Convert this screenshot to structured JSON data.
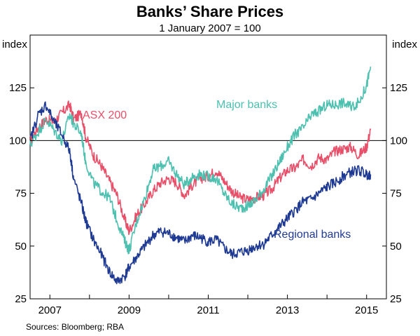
{
  "chart_data": {
    "type": "line",
    "title": "Banks’ Share Prices",
    "subtitle": "1 January 2007 = 100",
    "ylabel_left": "index",
    "ylabel_right": "index",
    "ylim": [
      25,
      150
    ],
    "yticks": [
      25,
      50,
      75,
      100,
      125
    ],
    "xlim": [
      2006.5,
      2015.5
    ],
    "xticks": [
      2007,
      2009,
      2011,
      2013,
      2015
    ],
    "reference_line": 100,
    "grid": false,
    "series": [
      {
        "name": "ASX 200",
        "color": "#e8506a",
        "x": [
          2006.5,
          2006.7,
          2006.9,
          2007.1,
          2007.3,
          2007.5,
          2007.6,
          2007.8,
          2007.9,
          2008.1,
          2008.3,
          2008.5,
          2008.7,
          2008.9,
          2009.0,
          2009.2,
          2009.4,
          2009.6,
          2009.8,
          2010.0,
          2010.2,
          2010.4,
          2010.6,
          2010.8,
          2011.0,
          2011.2,
          2011.4,
          2011.6,
          2011.8,
          2012.0,
          2012.2,
          2012.4,
          2012.6,
          2012.8,
          2013.0,
          2013.2,
          2013.4,
          2013.6,
          2013.8,
          2014.0,
          2014.2,
          2014.4,
          2014.6,
          2014.8,
          2015.0,
          2015.1
        ],
        "values": [
          100,
          106,
          110,
          109,
          113,
          117,
          110,
          113,
          102,
          93,
          88,
          81,
          74,
          62,
          57,
          65,
          70,
          76,
          80,
          82,
          80,
          74,
          79,
          82,
          83,
          86,
          81,
          76,
          73,
          72,
          73,
          74,
          77,
          82,
          86,
          87,
          91,
          88,
          92,
          91,
          95,
          96,
          97,
          93,
          97,
          105
        ]
      },
      {
        "name": "Major banks",
        "color": "#4dc0b0",
        "x": [
          2006.5,
          2006.7,
          2006.9,
          2007.1,
          2007.3,
          2007.5,
          2007.6,
          2007.8,
          2007.9,
          2008.1,
          2008.3,
          2008.5,
          2008.7,
          2008.9,
          2009.0,
          2009.2,
          2009.4,
          2009.6,
          2009.8,
          2010.0,
          2010.2,
          2010.4,
          2010.6,
          2010.8,
          2011.0,
          2011.2,
          2011.4,
          2011.6,
          2011.8,
          2012.0,
          2012.2,
          2012.4,
          2012.6,
          2012.8,
          2013.0,
          2013.2,
          2013.4,
          2013.6,
          2013.8,
          2014.0,
          2014.2,
          2014.4,
          2014.6,
          2014.8,
          2015.0,
          2015.1
        ],
        "values": [
          98,
          104,
          110,
          105,
          100,
          112,
          108,
          103,
          90,
          80,
          76,
          73,
          62,
          52,
          48,
          62,
          73,
          86,
          88,
          90,
          84,
          79,
          83,
          84,
          83,
          82,
          75,
          70,
          68,
          69,
          72,
          77,
          83,
          90,
          97,
          103,
          106,
          112,
          114,
          117,
          117,
          118,
          116,
          118,
          126,
          135
        ]
      },
      {
        "name": "Regional banks",
        "color": "#1f3a93",
        "x": [
          2006.5,
          2006.7,
          2006.9,
          2007.1,
          2007.3,
          2007.5,
          2007.6,
          2007.8,
          2007.9,
          2008.1,
          2008.3,
          2008.5,
          2008.7,
          2008.9,
          2009.0,
          2009.2,
          2009.4,
          2009.6,
          2009.8,
          2010.0,
          2010.2,
          2010.4,
          2010.6,
          2010.8,
          2011.0,
          2011.2,
          2011.4,
          2011.6,
          2011.8,
          2012.0,
          2012.2,
          2012.4,
          2012.6,
          2012.8,
          2013.0,
          2013.2,
          2013.4,
          2013.6,
          2013.8,
          2014.0,
          2014.2,
          2014.4,
          2014.6,
          2014.8,
          2015.0,
          2015.1
        ],
        "values": [
          100,
          112,
          117,
          109,
          103,
          95,
          82,
          70,
          62,
          53,
          46,
          38,
          33,
          36,
          40,
          45,
          50,
          55,
          57,
          56,
          54,
          52,
          55,
          54,
          52,
          53,
          49,
          46,
          47,
          48,
          50,
          51,
          55,
          59,
          63,
          67,
          71,
          72,
          75,
          78,
          80,
          83,
          85,
          86,
          84,
          84
        ]
      }
    ],
    "annotations": [
      {
        "text": "ASX 200",
        "series": "ASX 200"
      },
      {
        "text": "Major banks",
        "series": "Major banks"
      },
      {
        "text": "Regional banks",
        "series": "Regional banks"
      }
    ],
    "source": "Sources:  Bloomberg; RBA"
  }
}
